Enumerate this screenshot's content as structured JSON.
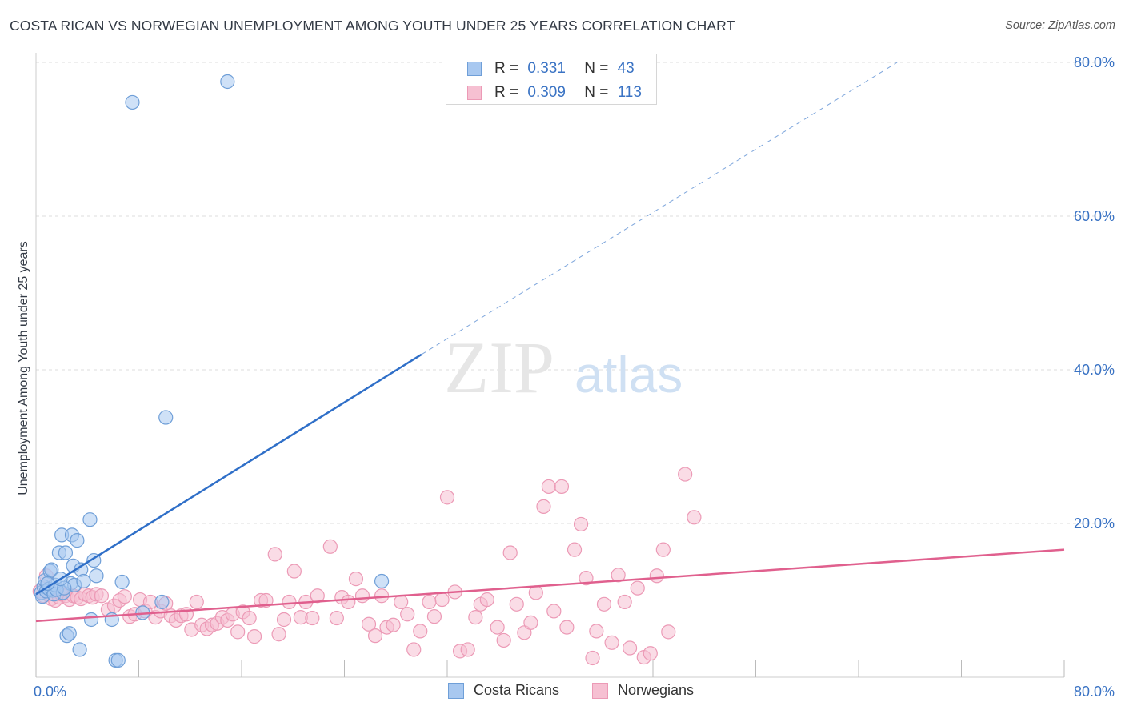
{
  "header": {
    "title": "COSTA RICAN VS NORWEGIAN UNEMPLOYMENT AMONG YOUTH UNDER 25 YEARS CORRELATION CHART",
    "source": "Source: ZipAtlas.com"
  },
  "legend_top": {
    "rows": [
      {
        "r_label": "R =",
        "r_value": "0.331",
        "n_label": "N =",
        "n_value": "43"
      },
      {
        "r_label": "R =",
        "r_value": "0.309",
        "n_label": "N =",
        "n_value": "113"
      }
    ]
  },
  "legend_bottom": {
    "items": [
      {
        "label": "Costa Ricans"
      },
      {
        "label": "Norwegians"
      }
    ]
  },
  "watermark": {
    "part1": "ZIP",
    "part2": "atlas"
  },
  "colors": {
    "blue_fill": "#a8c8f0",
    "blue_stroke": "#6f9fd8",
    "blue_line": "#2f6fc8",
    "pink_fill": "#f6c0d2",
    "pink_stroke": "#ec9ab6",
    "pink_line": "#e0608e",
    "tick_label": "#3a73c4",
    "grid": "#dddddd"
  },
  "chart_data": {
    "type": "scatter",
    "title": "COSTA RICAN VS NORWEGIAN UNEMPLOYMENT AMONG YOUTH UNDER 25 YEARS CORRELATION CHART",
    "xlabel": "",
    "ylabel": "Unemployment Among Youth under 25 years",
    "xlim": [
      0,
      80
    ],
    "ylim": [
      0,
      80
    ],
    "x_tick_labels": [
      "0.0%",
      "80.0%"
    ],
    "y_tick_labels": [
      "20.0%",
      "40.0%",
      "60.0%",
      "80.0%"
    ],
    "y_ticks": [
      20,
      40,
      60,
      80
    ],
    "grid": true,
    "legend_position": "top-center",
    "series": [
      {
        "name": "Costa Ricans",
        "r": 0.331,
        "n": 43,
        "trend": {
          "x0": 0,
          "y0": 10.8,
          "x1": 30,
          "y1": 42.0,
          "dashed_to_x": 67,
          "dashed_to_y": 80
        },
        "points": [
          [
            0.4,
            11.0
          ],
          [
            0.5,
            10.5
          ],
          [
            0.6,
            11.8
          ],
          [
            0.7,
            12.6
          ],
          [
            0.8,
            11.2
          ],
          [
            1.0,
            11.5
          ],
          [
            1.1,
            13.8
          ],
          [
            1.2,
            14.0
          ],
          [
            1.3,
            11.3
          ],
          [
            1.4,
            10.8
          ],
          [
            1.5,
            12.0
          ],
          [
            1.8,
            16.2
          ],
          [
            2.0,
            18.5
          ],
          [
            2.1,
            11.0
          ],
          [
            2.3,
            16.2
          ],
          [
            2.4,
            5.4
          ],
          [
            2.6,
            5.7
          ],
          [
            2.7,
            12.2
          ],
          [
            2.8,
            18.5
          ],
          [
            2.9,
            14.5
          ],
          [
            3.0,
            12.0
          ],
          [
            3.2,
            17.8
          ],
          [
            3.4,
            3.6
          ],
          [
            3.5,
            14.0
          ],
          [
            3.7,
            12.5
          ],
          [
            4.2,
            20.5
          ],
          [
            4.5,
            15.2
          ],
          [
            4.7,
            13.2
          ],
          [
            4.3,
            7.5
          ],
          [
            5.9,
            7.5
          ],
          [
            6.2,
            2.2
          ],
          [
            6.4,
            2.2
          ],
          [
            6.7,
            12.4
          ],
          [
            7.5,
            74.8
          ],
          [
            8.3,
            8.4
          ],
          [
            9.8,
            9.8
          ],
          [
            10.1,
            33.8
          ],
          [
            14.9,
            77.5
          ],
          [
            26.9,
            12.5
          ],
          [
            1.6,
            11.4
          ],
          [
            0.9,
            12.2
          ],
          [
            2.2,
            11.6
          ],
          [
            1.9,
            12.8
          ]
        ]
      },
      {
        "name": "Norwegians",
        "r": 0.309,
        "n": 113,
        "trend": {
          "x0": 0,
          "y0": 7.3,
          "x1": 80,
          "y1": 16.6
        },
        "points": [
          [
            0.3,
            11.2
          ],
          [
            0.6,
            10.6
          ],
          [
            0.8,
            13.2
          ],
          [
            1.0,
            10.8
          ],
          [
            1.2,
            10.2
          ],
          [
            1.5,
            10.0
          ],
          [
            1.8,
            10.4
          ],
          [
            2.0,
            10.8
          ],
          [
            2.3,
            10.6
          ],
          [
            2.6,
            10.1
          ],
          [
            2.9,
            10.6
          ],
          [
            3.2,
            10.4
          ],
          [
            3.5,
            10.2
          ],
          [
            3.8,
            10.8
          ],
          [
            4.1,
            10.6
          ],
          [
            4.4,
            10.4
          ],
          [
            4.7,
            10.8
          ],
          [
            5.1,
            10.6
          ],
          [
            5.6,
            8.8
          ],
          [
            6.1,
            9.3
          ],
          [
            6.5,
            10.0
          ],
          [
            6.9,
            10.5
          ],
          [
            7.3,
            7.9
          ],
          [
            7.7,
            8.2
          ],
          [
            8.1,
            10.1
          ],
          [
            8.5,
            8.6
          ],
          [
            8.9,
            9.8
          ],
          [
            9.3,
            7.8
          ],
          [
            9.7,
            8.6
          ],
          [
            10.1,
            9.6
          ],
          [
            10.5,
            8.0
          ],
          [
            10.9,
            7.4
          ],
          [
            11.3,
            8.0
          ],
          [
            11.7,
            8.2
          ],
          [
            12.1,
            6.2
          ],
          [
            12.5,
            9.8
          ],
          [
            12.9,
            6.8
          ],
          [
            13.3,
            6.3
          ],
          [
            13.7,
            6.8
          ],
          [
            14.1,
            7.0
          ],
          [
            14.5,
            7.8
          ],
          [
            14.9,
            7.4
          ],
          [
            15.3,
            8.2
          ],
          [
            15.7,
            5.9
          ],
          [
            16.1,
            8.5
          ],
          [
            16.6,
            7.7
          ],
          [
            17.0,
            5.3
          ],
          [
            17.5,
            10.0
          ],
          [
            17.9,
            10.0
          ],
          [
            18.6,
            16.0
          ],
          [
            18.9,
            5.6
          ],
          [
            19.3,
            7.5
          ],
          [
            19.7,
            9.8
          ],
          [
            20.1,
            13.8
          ],
          [
            20.6,
            7.8
          ],
          [
            21.0,
            9.8
          ],
          [
            21.5,
            7.7
          ],
          [
            21.9,
            10.6
          ],
          [
            22.9,
            17.0
          ],
          [
            23.4,
            7.7
          ],
          [
            23.8,
            10.4
          ],
          [
            24.3,
            9.8
          ],
          [
            24.9,
            12.8
          ],
          [
            25.4,
            10.6
          ],
          [
            25.9,
            6.9
          ],
          [
            26.4,
            5.4
          ],
          [
            26.9,
            10.6
          ],
          [
            27.3,
            6.5
          ],
          [
            27.8,
            6.8
          ],
          [
            28.4,
            9.8
          ],
          [
            28.9,
            8.2
          ],
          [
            29.4,
            3.6
          ],
          [
            29.9,
            6.0
          ],
          [
            30.6,
            9.8
          ],
          [
            31.0,
            7.9
          ],
          [
            31.6,
            10.1
          ],
          [
            32.0,
            23.4
          ],
          [
            32.6,
            11.1
          ],
          [
            33.0,
            3.4
          ],
          [
            33.6,
            3.6
          ],
          [
            34.2,
            7.8
          ],
          [
            34.6,
            9.5
          ],
          [
            35.1,
            10.1
          ],
          [
            35.9,
            6.5
          ],
          [
            36.4,
            4.8
          ],
          [
            36.9,
            16.2
          ],
          [
            37.4,
            9.5
          ],
          [
            38.0,
            5.8
          ],
          [
            38.5,
            7.1
          ],
          [
            38.9,
            11.0
          ],
          [
            39.5,
            22.2
          ],
          [
            39.9,
            24.8
          ],
          [
            40.3,
            8.6
          ],
          [
            40.9,
            24.8
          ],
          [
            41.3,
            6.5
          ],
          [
            41.9,
            16.6
          ],
          [
            42.4,
            19.9
          ],
          [
            42.8,
            12.9
          ],
          [
            43.3,
            2.5
          ],
          [
            43.6,
            6.0
          ],
          [
            44.2,
            9.5
          ],
          [
            44.8,
            4.5
          ],
          [
            45.3,
            13.3
          ],
          [
            45.8,
            9.8
          ],
          [
            46.2,
            3.8
          ],
          [
            46.8,
            11.6
          ],
          [
            47.3,
            2.6
          ],
          [
            47.8,
            3.1
          ],
          [
            48.3,
            13.2
          ],
          [
            48.8,
            16.6
          ],
          [
            49.2,
            5.9
          ],
          [
            50.5,
            26.4
          ],
          [
            51.2,
            20.8
          ]
        ]
      }
    ]
  }
}
